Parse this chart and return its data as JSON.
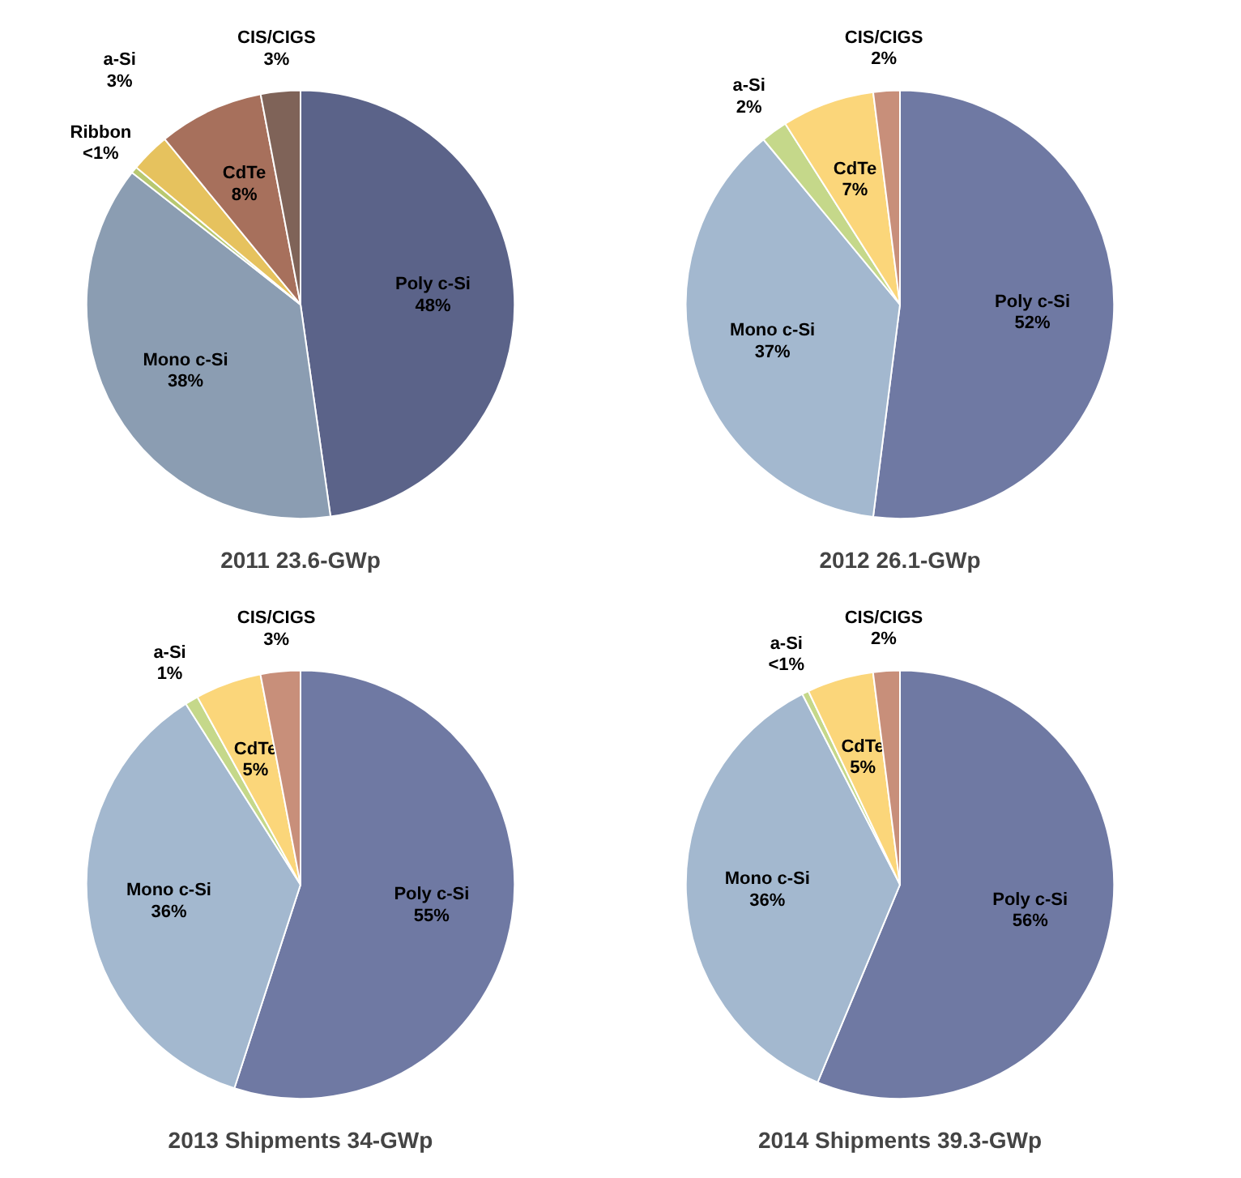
{
  "chart_data": [
    {
      "type": "pie",
      "title": "2011 23.6-GWp",
      "categories": [
        "Poly c-Si",
        "Mono c-Si",
        "Ribbon",
        "a-Si",
        "CdTe",
        "CIS/CIGS"
      ],
      "values": [
        48,
        38,
        0.5,
        3,
        8,
        3
      ],
      "value_labels": [
        "48%",
        "38%",
        "<1%",
        "3%",
        "8%",
        "3%"
      ],
      "colors": [
        "#5b6389",
        "#8b9db2",
        "#b8c870",
        "#e6c25e",
        "#a7705c",
        "#7f6358"
      ]
    },
    {
      "type": "pie",
      "title": "2012 26.1-GWp",
      "categories": [
        "Poly c-Si",
        "Mono c-Si",
        "a-Si",
        "CdTe",
        "CIS/CIGS"
      ],
      "values": [
        52,
        37,
        2,
        7,
        2
      ],
      "value_labels": [
        "52%",
        "37%",
        "2%",
        "7%",
        "2%"
      ],
      "colors": [
        "#6f79a3",
        "#a3b8cf",
        "#c5d88a",
        "#fbd67a",
        "#c88f7a"
      ]
    },
    {
      "type": "pie",
      "title": "2013 Shipments 34-GWp",
      "categories": [
        "Poly c-Si",
        "Mono c-Si",
        "a-Si",
        "CdTe",
        "CIS/CIGS"
      ],
      "values": [
        55,
        36,
        1,
        5,
        3
      ],
      "value_labels": [
        "55%",
        "36%",
        "1%",
        "5%",
        "3%"
      ],
      "colors": [
        "#6f79a3",
        "#a3b8cf",
        "#c5d88a",
        "#fbd67a",
        "#c88f7a"
      ]
    },
    {
      "type": "pie",
      "title": "2014 Shipments 39.3-GWp",
      "categories": [
        "Poly c-Si",
        "Mono c-Si",
        "a-Si",
        "CdTe",
        "CIS/CIGS"
      ],
      "values": [
        56,
        36,
        0.5,
        5,
        2
      ],
      "value_labels": [
        "56%",
        "36%",
        "<1%",
        "5%",
        "2%"
      ],
      "colors": [
        "#6f79a3",
        "#a3b8cf",
        "#c5d88a",
        "#fbd67a",
        "#c88f7a"
      ]
    }
  ]
}
